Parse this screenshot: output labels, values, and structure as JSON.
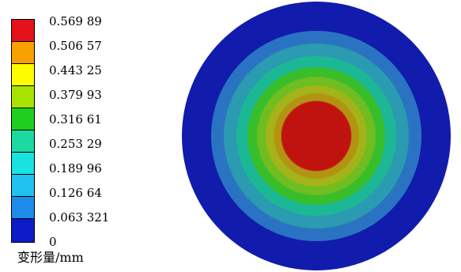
{
  "legend": {
    "unit_label": "变形量/mm",
    "ticks": [
      "0.569 89",
      "0.506 57",
      "0.443 25",
      "0.379 93",
      "0.316 61",
      "0.253 29",
      "0.189 96",
      "0.126 64",
      "0.063 321",
      "0"
    ],
    "colors": [
      "#e3121b",
      "#f6a100",
      "#fdfc00",
      "#a6e300",
      "#1fcf1f",
      "#1cd9a0",
      "#18e2e2",
      "#21c2f0",
      "#1d8be8",
      "#0d1cc6"
    ]
  },
  "contour": {
    "ring_colors": [
      "#111bac",
      "#2a73c2",
      "#2a9bb0",
      "#1cb895",
      "#38be2a",
      "#6fbd21",
      "#a3b419",
      "#b39412",
      "#b26e14",
      "#c0120f"
    ]
  }
}
